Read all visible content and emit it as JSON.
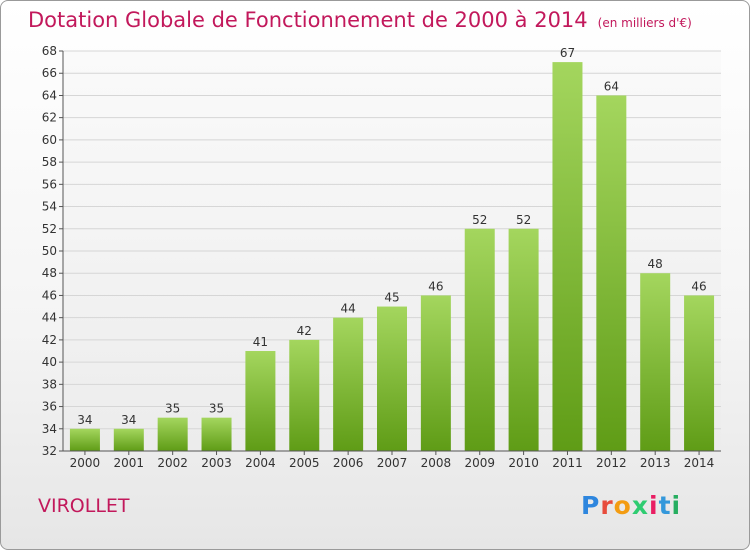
{
  "title": "Dotation Globale de Fonctionnement de 2000 à 2014",
  "unit": "(en milliers d'€)",
  "commune": "VIROLLET",
  "logo": {
    "text": "Proxiti",
    "colors": [
      "#2e86de",
      "#e74c3c",
      "#f39c12",
      "#2ecc71",
      "#e91e63",
      "#3498db",
      "#27ae60"
    ]
  },
  "colors": {
    "title": "#c2185b",
    "bar_light": "#a4d65e",
    "bar_dark": "#5f9c16"
  },
  "chart_data": {
    "type": "bar",
    "title": "Dotation Globale de Fonctionnement de 2000 à 2014",
    "categories": [
      "2000",
      "2001",
      "2002",
      "2003",
      "2004",
      "2005",
      "2006",
      "2007",
      "2008",
      "2009",
      "2010",
      "2011",
      "2012",
      "2013",
      "2014"
    ],
    "values": [
      34,
      34,
      35,
      35,
      41,
      42,
      44,
      45,
      46,
      52,
      52,
      67,
      64,
      48,
      46
    ],
    "ylim": [
      32,
      68
    ],
    "yticks": [
      32,
      34,
      36,
      38,
      40,
      42,
      44,
      46,
      48,
      50,
      52,
      54,
      56,
      58,
      60,
      62,
      64,
      66,
      68
    ],
    "grid": true,
    "xlabel": "",
    "ylabel": ""
  }
}
